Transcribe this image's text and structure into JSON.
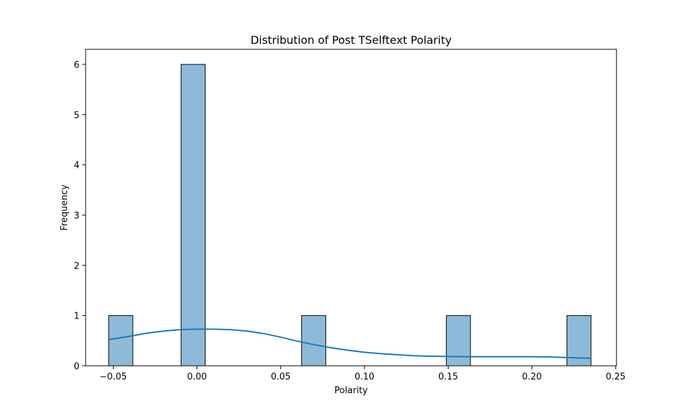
{
  "chart_data": {
    "type": "bar",
    "title": "Distribution of Post TSelftext Polarity",
    "xlabel": "Polarity",
    "ylabel": "Frequency",
    "xlim": [
      -0.0665,
      0.2505
    ],
    "ylim": [
      0,
      6.3
    ],
    "xticks": [
      -0.05,
      0.0,
      0.05,
      0.1,
      0.15,
      0.2,
      0.25
    ],
    "xtick_labels": [
      "−0.05",
      "0.00",
      "0.05",
      "0.10",
      "0.15",
      "0.20",
      "0.25"
    ],
    "yticks": [
      0,
      1,
      2,
      3,
      4,
      5,
      6
    ],
    "ytick_labels": [
      "0",
      "1",
      "2",
      "3",
      "4",
      "5",
      "6"
    ],
    "bar_color": "#8ebad9",
    "bar_edge_color": "#000000",
    "kde_color": "#1f77b4",
    "bars": [
      {
        "x0": -0.0527,
        "x1": -0.0383,
        "count": 1
      },
      {
        "x0": -0.0095,
        "x1": 0.0049,
        "count": 6
      },
      {
        "x0": 0.0625,
        "x1": 0.0769,
        "count": 1
      },
      {
        "x0": 0.1489,
        "x1": 0.1633,
        "count": 1
      },
      {
        "x0": 0.2209,
        "x1": 0.2353,
        "count": 1
      }
    ],
    "kde": {
      "x": [
        -0.0527,
        -0.04,
        -0.03,
        -0.02,
        -0.01,
        0.0,
        0.01,
        0.02,
        0.03,
        0.04,
        0.05,
        0.06,
        0.07,
        0.08,
        0.09,
        0.1,
        0.11,
        0.12,
        0.13,
        0.14,
        0.15,
        0.16,
        0.17,
        0.18,
        0.19,
        0.2,
        0.21,
        0.22,
        0.23,
        0.2353
      ],
      "y": [
        0.52,
        0.59,
        0.65,
        0.69,
        0.72,
        0.73,
        0.73,
        0.72,
        0.69,
        0.64,
        0.57,
        0.49,
        0.42,
        0.36,
        0.31,
        0.27,
        0.24,
        0.22,
        0.2,
        0.19,
        0.185,
        0.18,
        0.18,
        0.18,
        0.18,
        0.18,
        0.175,
        0.165,
        0.155,
        0.15
      ]
    }
  }
}
